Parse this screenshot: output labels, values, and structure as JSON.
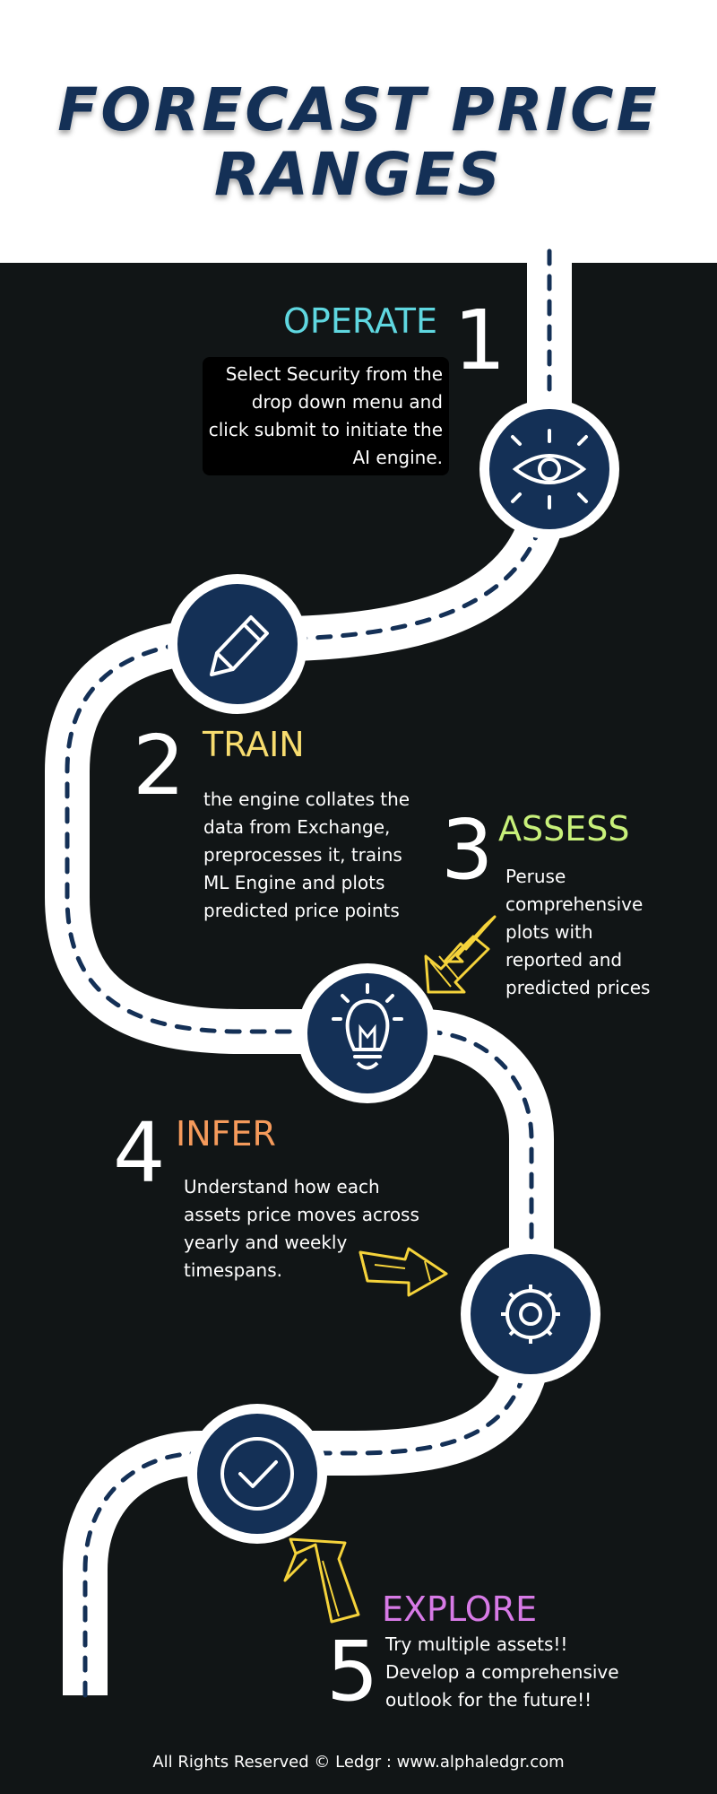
{
  "title": {
    "line1": "FORECAST PRICE",
    "line2": "RANGES"
  },
  "steps": [
    {
      "num": "1",
      "title": "OPERATE",
      "color": "#5fd7e0",
      "icon": "eye-icon",
      "lines": [
        "Select Security from the",
        "drop down menu and",
        "click submit to initiate the",
        "AI engine."
      ]
    },
    {
      "num": "2",
      "title": "TRAIN",
      "color": "#f7dc6f",
      "icon": "pencil-icon",
      "lines": [
        "the engine collates the",
        "data from Exchange,",
        "preprocesses it,  trains",
        "ML Engine and plots",
        "predicted price points"
      ]
    },
    {
      "num": "3",
      "title": "ASSESS",
      "color": "#c8f07a",
      "icon": "lightbulb-icon",
      "lines": [
        "Peruse",
        "comprehensive",
        "plots with",
        "reported and",
        "predicted prices"
      ]
    },
    {
      "num": "4",
      "title": "INFER",
      "color": "#f59a5b",
      "icon": "gear-icon",
      "lines": [
        "Understand how each",
        "assets price moves across",
        "yearly and weekly",
        "timespans."
      ]
    },
    {
      "num": "5",
      "title": "EXPLORE",
      "color": "#d77ae6",
      "icon": "checkmark-icon",
      "lines": [
        "Try multiple assets!!",
        "Develop a comprehensive",
        "outlook for the future!!"
      ]
    }
  ],
  "colors": {
    "road": "#ffffff",
    "dash": "#143056",
    "circle": "#143056",
    "arrow": "#f5d33b",
    "background": "#111516"
  },
  "footer": "All Rights Reserved © Ledgr : www.alphaledgr.com"
}
